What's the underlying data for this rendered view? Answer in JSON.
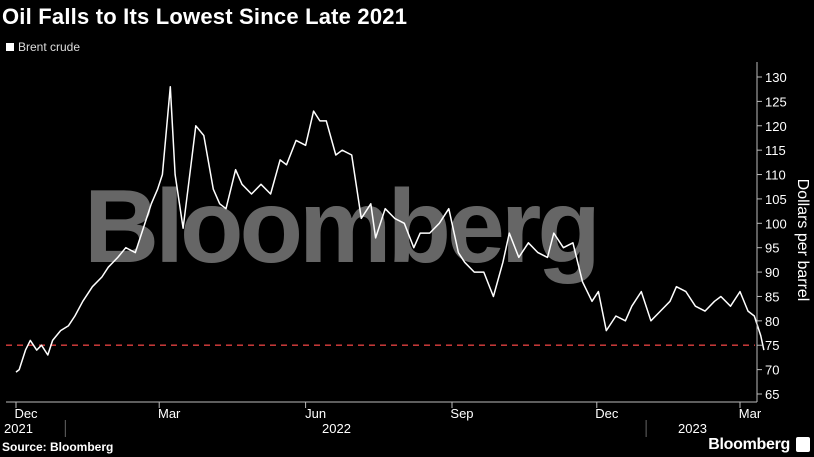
{
  "title": "Oil Falls to Its Lowest Since Late 2021",
  "source": "Source: Bloomberg",
  "brand": "Bloomberg",
  "watermark": "Bloomberg",
  "colors": {
    "line": "#ffffff",
    "reference": "#e0403f",
    "background": "#000000",
    "axis": "#bbbbbb"
  },
  "chart_data": {
    "type": "line",
    "title": "Oil Falls to Its Lowest Since Late 2021",
    "ylabel": "Dollars per barrel",
    "ylim": [
      65,
      130
    ],
    "yticks": [
      65,
      70,
      75,
      80,
      85,
      90,
      95,
      100,
      105,
      110,
      115,
      120,
      125,
      130
    ],
    "xlim": [
      "2021-12-01",
      "2023-03-01"
    ],
    "xticks": [
      {
        "date": "2021-12-01",
        "label": "Dec"
      },
      {
        "date": "2022-03-01",
        "label": "Mar"
      },
      {
        "date": "2022-06-01",
        "label": "Jun"
      },
      {
        "date": "2022-09-01",
        "label": "Sep"
      },
      {
        "date": "2022-12-01",
        "label": "Dec"
      },
      {
        "date": "2023-03-01",
        "label": "Mar"
      }
    ],
    "year_labels": [
      {
        "date": "2021-12-01",
        "label": "2021"
      },
      {
        "date": "2022-06-01",
        "label": "2022"
      },
      {
        "date": "2023-02-01",
        "label": "2023"
      }
    ],
    "legend": {
      "position": "top-left",
      "entries": [
        "Brent crude"
      ]
    },
    "reference_line": {
      "value": 75,
      "style": "dashed"
    },
    "series": [
      {
        "name": "Brent crude",
        "x": [
          "2021-12-01",
          "2021-12-03",
          "2021-12-07",
          "2021-12-10",
          "2021-12-14",
          "2021-12-17",
          "2021-12-21",
          "2021-12-24",
          "2021-12-29",
          "2022-01-03",
          "2022-01-07",
          "2022-01-12",
          "2022-01-18",
          "2022-01-24",
          "2022-01-28",
          "2022-02-03",
          "2022-02-08",
          "2022-02-14",
          "2022-02-18",
          "2022-02-24",
          "2022-02-28",
          "2022-03-03",
          "2022-03-08",
          "2022-03-11",
          "2022-03-16",
          "2022-03-21",
          "2022-03-24",
          "2022-03-29",
          "2022-04-04",
          "2022-04-08",
          "2022-04-12",
          "2022-04-18",
          "2022-04-22",
          "2022-04-28",
          "2022-05-04",
          "2022-05-10",
          "2022-05-16",
          "2022-05-20",
          "2022-05-26",
          "2022-06-01",
          "2022-06-06",
          "2022-06-10",
          "2022-06-14",
          "2022-06-20",
          "2022-06-24",
          "2022-06-30",
          "2022-07-06",
          "2022-07-12",
          "2022-07-15",
          "2022-07-21",
          "2022-07-27",
          "2022-08-02",
          "2022-08-08",
          "2022-08-12",
          "2022-08-18",
          "2022-08-24",
          "2022-08-30",
          "2022-09-05",
          "2022-09-09",
          "2022-09-15",
          "2022-09-21",
          "2022-09-27",
          "2022-10-03",
          "2022-10-07",
          "2022-10-13",
          "2022-10-19",
          "2022-10-25",
          "2022-10-31",
          "2022-11-04",
          "2022-11-10",
          "2022-11-16",
          "2022-11-22",
          "2022-11-28",
          "2022-12-02",
          "2022-12-07",
          "2022-12-13",
          "2022-12-19",
          "2022-12-23",
          "2022-12-29",
          "2023-01-04",
          "2023-01-10",
          "2023-01-16",
          "2023-01-20",
          "2023-01-26",
          "2023-02-01",
          "2023-02-07",
          "2023-02-13",
          "2023-02-17",
          "2023-02-23",
          "2023-03-01",
          "2023-03-06",
          "2023-03-10",
          "2023-03-14",
          "2023-03-16"
        ],
        "values": [
          69.5,
          70,
          74,
          76,
          74,
          75,
          73,
          76,
          78,
          79,
          81,
          84,
          87,
          89,
          91,
          93,
          95,
          94,
          98,
          104,
          107,
          110,
          128,
          110,
          99,
          112,
          120,
          118,
          107,
          104,
          103,
          111,
          108,
          106,
          108,
          106,
          113,
          112,
          117,
          116,
          123,
          121,
          121,
          114,
          115,
          114,
          101,
          104,
          97,
          103,
          101,
          100,
          95,
          98,
          98,
          100,
          103,
          94,
          92,
          90,
          90,
          85,
          92,
          98,
          93,
          96,
          94,
          93,
          98,
          95,
          96,
          88,
          84,
          86,
          78,
          81,
          80,
          83,
          86,
          80,
          82,
          84,
          87,
          86,
          83,
          82,
          84,
          85,
          83,
          86,
          82,
          81,
          77,
          74
        ]
      }
    ]
  }
}
